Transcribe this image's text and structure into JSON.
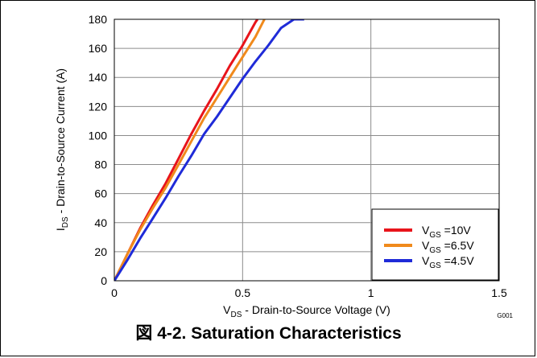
{
  "chart_data": {
    "type": "line",
    "xlabel_main": "V",
    "xlabel_sub": "DS",
    "xlabel_rest": " - Drain-to-Source Voltage (V)",
    "ylabel_main": "I",
    "ylabel_sub": "DS",
    "ylabel_rest": " - Drain-to-Source Current (A)",
    "xlim": [
      0,
      1.5
    ],
    "ylim": [
      0,
      180
    ],
    "x_ticks": [
      "0",
      "0.5",
      "1",
      "1.5"
    ],
    "y_ticks": [
      "0",
      "20",
      "40",
      "60",
      "80",
      "100",
      "120",
      "140",
      "160",
      "180"
    ],
    "grid": true,
    "legend_position": "bottom-right",
    "series": [
      {
        "name_main": "V",
        "name_sub": "GS",
        "name_rest": " =10V",
        "color": "#e8141b",
        "points": [
          [
            0,
            0
          ],
          [
            0.05,
            18
          ],
          [
            0.1,
            36
          ],
          [
            0.15,
            52
          ],
          [
            0.2,
            67
          ],
          [
            0.25,
            84
          ],
          [
            0.3,
            101
          ],
          [
            0.35,
            117
          ],
          [
            0.4,
            132
          ],
          [
            0.45,
            148
          ],
          [
            0.5,
            162
          ],
          [
            0.55,
            178
          ],
          [
            0.558,
            180
          ]
        ]
      },
      {
        "name_main": "V",
        "name_sub": "GS",
        "name_rest": " =6.5V",
        "color": "#f08a1c",
        "points": [
          [
            0,
            0
          ],
          [
            0.05,
            18
          ],
          [
            0.1,
            35
          ],
          [
            0.15,
            50
          ],
          [
            0.2,
            64
          ],
          [
            0.25,
            80
          ],
          [
            0.3,
            96
          ],
          [
            0.35,
            112
          ],
          [
            0.4,
            126
          ],
          [
            0.45,
            140
          ],
          [
            0.5,
            154
          ],
          [
            0.55,
            168
          ],
          [
            0.585,
            180
          ]
        ]
      },
      {
        "name_main": "V",
        "name_sub": "GS",
        "name_rest": " =4.5V",
        "color": "#1f2bd8",
        "points": [
          [
            0,
            0
          ],
          [
            0.05,
            14
          ],
          [
            0.1,
            29
          ],
          [
            0.15,
            43
          ],
          [
            0.2,
            57
          ],
          [
            0.25,
            72
          ],
          [
            0.3,
            86
          ],
          [
            0.35,
            101
          ],
          [
            0.4,
            113
          ],
          [
            0.45,
            126
          ],
          [
            0.5,
            139
          ],
          [
            0.55,
            151
          ],
          [
            0.6,
            162
          ],
          [
            0.65,
            174
          ],
          [
            0.7,
            180
          ],
          [
            0.74,
            180
          ]
        ]
      }
    ]
  },
  "code": "G001",
  "caption": "図 4-2. Saturation Characteristics"
}
